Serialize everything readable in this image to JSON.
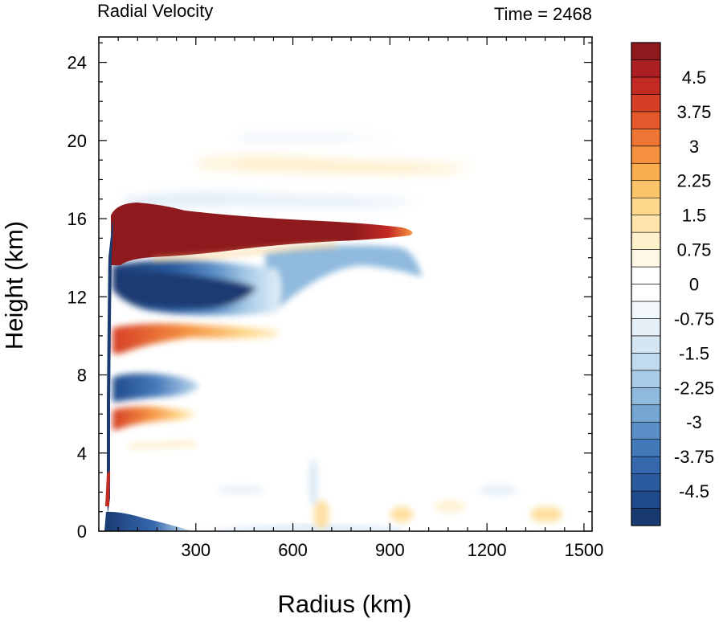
{
  "chart_data": {
    "type": "heatmap",
    "title_left": "Radial Velocity",
    "title_right": "Time = 2468",
    "xlabel": "Radius (km)",
    "ylabel": "Height (km)",
    "xlim": [
      0,
      1525
    ],
    "ylim": [
      0,
      25.3
    ],
    "x_ticks": [
      300,
      600,
      900,
      1200,
      1500
    ],
    "y_ticks": [
      0,
      4,
      8,
      12,
      16,
      20,
      24
    ],
    "colorbar": {
      "min": -5.25,
      "max": 5.25,
      "step": 0.375,
      "labels": [
        "4.5",
        "3.75",
        "3",
        "2.25",
        "1.5",
        "0.75",
        "0",
        "-0.75",
        "-1.5",
        "-2.25",
        "-3",
        "-3.75",
        "-4.5"
      ],
      "label_values": [
        4.5,
        3.75,
        3,
        2.25,
        1.5,
        0.75,
        0,
        -0.75,
        -1.5,
        -2.25,
        -3,
        -3.75,
        -4.5
      ],
      "colors": [
        "#1a3a72",
        "#1f4a8c",
        "#2a5b9e",
        "#3568ad",
        "#4479b9",
        "#5a8ec7",
        "#75a5d3",
        "#8fbade",
        "#a8cbe6",
        "#c0daee",
        "#d4e6f3",
        "#e5f0f8",
        "#f2f7fb",
        "#ffffff",
        "#ffffff",
        "#fff8e6",
        "#fff0cc",
        "#ffe5ad",
        "#fed88c",
        "#fbc36a",
        "#f9ad4f",
        "#f5913f",
        "#ee7634",
        "#e3592b",
        "#d63f26",
        "#c42a24",
        "#ab1e22",
        "#8e1a1d"
      ]
    },
    "features": [
      {
        "name": "upper outflow",
        "sign": "positive",
        "r_range": [
          40,
          1000
        ],
        "z_range": [
          13.5,
          16.8
        ],
        "peak": 5.5
      },
      {
        "name": "upper return inflow",
        "sign": "negative",
        "r_range": [
          60,
          1000
        ],
        "z_range": [
          10.5,
          14.5
        ],
        "peak": -5.5
      },
      {
        "name": "mid-level outflow band",
        "sign": "positive",
        "r_range": [
          50,
          560
        ],
        "z_range": [
          9.3,
          10.8
        ],
        "peak": 3.5
      },
      {
        "name": "mid-level inflow band",
        "sign": "negative",
        "r_range": [
          50,
          300
        ],
        "z_range": [
          7.0,
          8.4
        ],
        "peak": -4.5
      },
      {
        "name": "lower outflow band",
        "sign": "positive",
        "r_range": [
          50,
          290
        ],
        "z_range": [
          5.5,
          6.8
        ],
        "peak": 3.5
      },
      {
        "name": "boundary layer inflow",
        "sign": "negative",
        "r_range": [
          20,
          450
        ],
        "z_range": [
          0,
          1.2
        ],
        "peak": -5.5
      },
      {
        "name": "lower core outflow",
        "sign": "positive",
        "r_range": [
          20,
          60
        ],
        "z_range": [
          1.0,
          3.3
        ],
        "peak": 5.5
      },
      {
        "name": "upper faint outflow",
        "sign": "positive",
        "r_range": [
          250,
          1180
        ],
        "z_range": [
          18.0,
          19.2
        ],
        "peak": 0.9
      },
      {
        "name": "top faint inflow",
        "sign": "negative",
        "r_range": [
          60,
          1000
        ],
        "z_range": [
          16.5,
          17.2
        ],
        "peak": -0.8
      }
    ]
  }
}
